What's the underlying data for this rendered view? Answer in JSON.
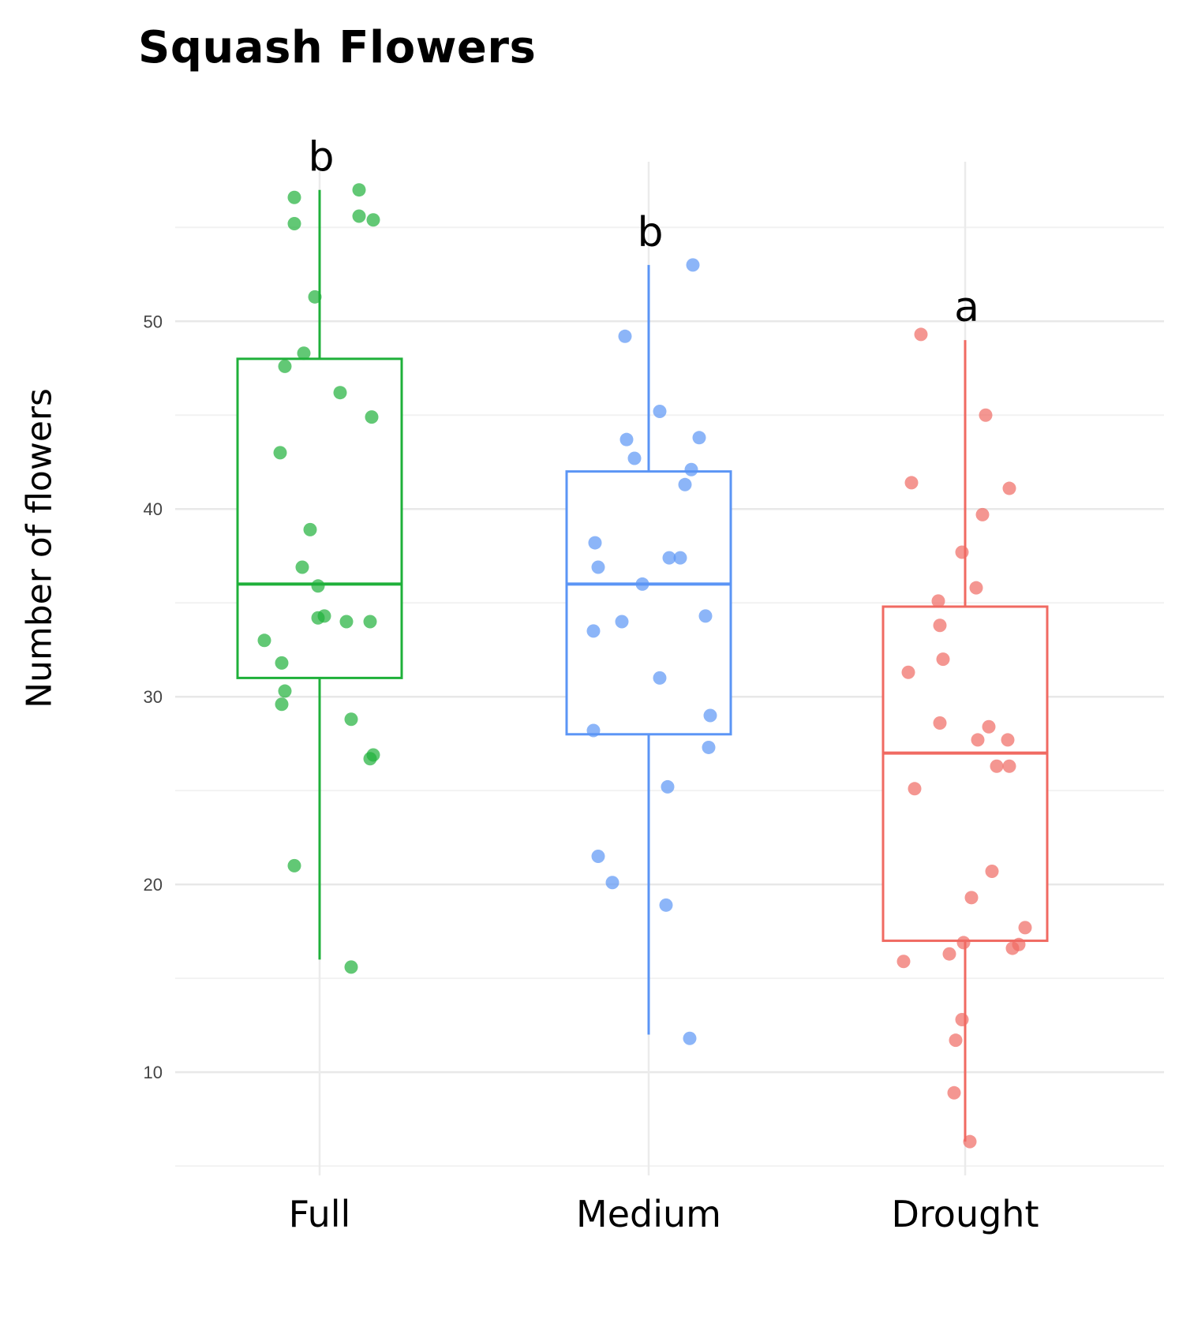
{
  "chart_data": {
    "type": "box",
    "title": "Squash Flowers",
    "xlabel": "",
    "ylabel": "Number of flowers",
    "ylim": [
      4.5,
      58.5
    ],
    "yticks": [
      10,
      20,
      30,
      40,
      50
    ],
    "grid": true,
    "categories": [
      "Full",
      "Medium",
      "Drought"
    ],
    "series": [
      {
        "color": "#1fb03a",
        "letter": "b",
        "box": {
          "min": 16,
          "q1": 31,
          "median": 36,
          "q3": 48,
          "max": 57
        },
        "points": [
          {
            "dx": -0.16,
            "y": 56.6
          },
          {
            "dx": -0.16,
            "y": 55.2
          },
          {
            "dx": 0.25,
            "y": 57.0
          },
          {
            "dx": 0.25,
            "y": 55.6
          },
          {
            "dx": 0.34,
            "y": 55.4
          },
          {
            "dx": -0.03,
            "y": 51.3
          },
          {
            "dx": -0.1,
            "y": 48.3
          },
          {
            "dx": -0.22,
            "y": 47.6
          },
          {
            "dx": 0.13,
            "y": 46.2
          },
          {
            "dx": 0.33,
            "y": 44.9
          },
          {
            "dx": -0.25,
            "y": 43.0
          },
          {
            "dx": -0.06,
            "y": 38.9
          },
          {
            "dx": -0.11,
            "y": 36.9
          },
          {
            "dx": -0.01,
            "y": 35.9
          },
          {
            "dx": -0.01,
            "y": 34.2
          },
          {
            "dx": 0.03,
            "y": 34.3
          },
          {
            "dx": 0.17,
            "y": 34.0
          },
          {
            "dx": 0.32,
            "y": 34.0
          },
          {
            "dx": -0.35,
            "y": 33.0
          },
          {
            "dx": -0.24,
            "y": 31.8
          },
          {
            "dx": -0.22,
            "y": 30.3
          },
          {
            "dx": -0.24,
            "y": 29.6
          },
          {
            "dx": 0.2,
            "y": 28.8
          },
          {
            "dx": 0.34,
            "y": 26.9
          },
          {
            "dx": 0.32,
            "y": 26.7
          },
          {
            "dx": -0.16,
            "y": 21.0
          },
          {
            "dx": 0.2,
            "y": 15.6
          }
        ]
      },
      {
        "color": "#5b95f5",
        "letter": "b",
        "box": {
          "min": 12,
          "q1": 28,
          "median": 36,
          "q3": 42,
          "max": 53
        },
        "points": [
          {
            "dx": 0.28,
            "y": 53.0
          },
          {
            "dx": -0.15,
            "y": 49.2
          },
          {
            "dx": 0.07,
            "y": 45.2
          },
          {
            "dx": -0.14,
            "y": 43.7
          },
          {
            "dx": 0.32,
            "y": 43.8
          },
          {
            "dx": -0.09,
            "y": 42.7
          },
          {
            "dx": 0.27,
            "y": 42.1
          },
          {
            "dx": 0.23,
            "y": 41.3
          },
          {
            "dx": -0.34,
            "y": 38.2
          },
          {
            "dx": -0.32,
            "y": 36.9
          },
          {
            "dx": 0.13,
            "y": 37.4
          },
          {
            "dx": 0.2,
            "y": 37.4
          },
          {
            "dx": -0.04,
            "y": 36.0
          },
          {
            "dx": 0.36,
            "y": 34.3
          },
          {
            "dx": -0.17,
            "y": 34.0
          },
          {
            "dx": -0.35,
            "y": 33.5
          },
          {
            "dx": 0.07,
            "y": 31.0
          },
          {
            "dx": 0.39,
            "y": 29.0
          },
          {
            "dx": -0.35,
            "y": 28.2
          },
          {
            "dx": 0.38,
            "y": 27.3
          },
          {
            "dx": 0.12,
            "y": 25.2
          },
          {
            "dx": -0.32,
            "y": 21.5
          },
          {
            "dx": -0.23,
            "y": 20.1
          },
          {
            "dx": 0.11,
            "y": 18.9
          },
          {
            "dx": 0.26,
            "y": 11.8
          }
        ]
      },
      {
        "color": "#f06a62",
        "letter": "a",
        "box": {
          "min": 6.3,
          "q1": 17,
          "median": 27,
          "q3": 34.8,
          "max": 49
        },
        "points": [
          {
            "dx": -0.28,
            "y": 49.3
          },
          {
            "dx": 0.13,
            "y": 45.0
          },
          {
            "dx": -0.34,
            "y": 41.4
          },
          {
            "dx": 0.28,
            "y": 41.1
          },
          {
            "dx": 0.11,
            "y": 39.7
          },
          {
            "dx": -0.02,
            "y": 37.7
          },
          {
            "dx": 0.07,
            "y": 35.8
          },
          {
            "dx": -0.17,
            "y": 35.1
          },
          {
            "dx": -0.16,
            "y": 33.8
          },
          {
            "dx": -0.36,
            "y": 31.3
          },
          {
            "dx": -0.14,
            "y": 32.0
          },
          {
            "dx": -0.16,
            "y": 28.6
          },
          {
            "dx": 0.15,
            "y": 28.4
          },
          {
            "dx": 0.08,
            "y": 27.7
          },
          {
            "dx": 0.27,
            "y": 27.7
          },
          {
            "dx": 0.2,
            "y": 26.3
          },
          {
            "dx": 0.28,
            "y": 26.3
          },
          {
            "dx": -0.32,
            "y": 25.1
          },
          {
            "dx": 0.17,
            "y": 20.7
          },
          {
            "dx": 0.04,
            "y": 19.3
          },
          {
            "dx": 0.38,
            "y": 17.7
          },
          {
            "dx": 0.34,
            "y": 16.8
          },
          {
            "dx": 0.3,
            "y": 16.6
          },
          {
            "dx": -0.01,
            "y": 16.9
          },
          {
            "dx": -0.1,
            "y": 16.3
          },
          {
            "dx": -0.39,
            "y": 15.9
          },
          {
            "dx": -0.02,
            "y": 12.8
          },
          {
            "dx": -0.06,
            "y": 11.7
          },
          {
            "dx": -0.07,
            "y": 8.9
          },
          {
            "dx": 0.03,
            "y": 6.3
          }
        ]
      }
    ]
  }
}
